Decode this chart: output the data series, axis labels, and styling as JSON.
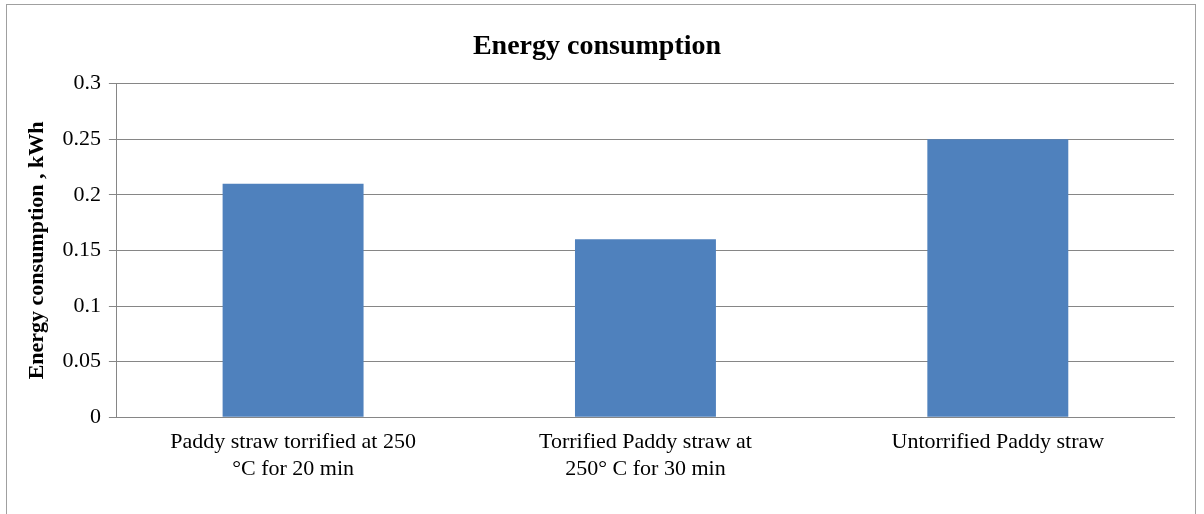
{
  "chart_data": {
    "type": "bar",
    "title": "Energy consumption",
    "ylabel": "Energy consumption , kWh",
    "categories": [
      "Paddy straw torrified at 250 °C for 20 min",
      "Torrified Paddy straw at 250° C for 30 min",
      "Untorrified Paddy straw"
    ],
    "values": [
      0.21,
      0.16,
      0.25
    ],
    "color": "#4f81bd",
    "ylim": [
      0,
      0.3
    ],
    "yticks": [
      0,
      0.05,
      0.1,
      0.15,
      0.2,
      0.25,
      0.3
    ],
    "grid": "y",
    "legend": false
  }
}
